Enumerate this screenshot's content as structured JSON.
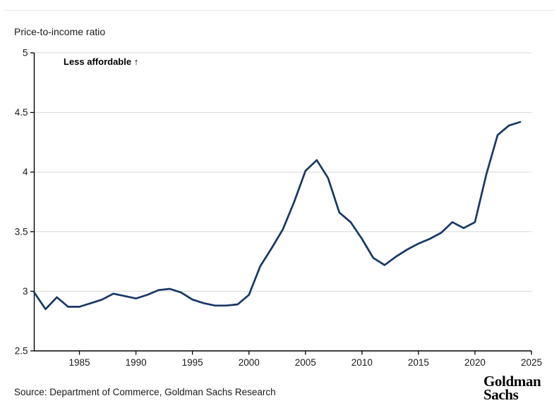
{
  "page": {
    "title": "Price-to-income ratio"
  },
  "annotation": {
    "label": "Less affordable ↑"
  },
  "footer": {
    "source": "Source: Department of Commerce, Goldman Sachs Research",
    "logo_line1": "Goldman",
    "logo_line2": "Sachs"
  },
  "colors": {
    "line": "#183866",
    "grid": "#d8d8d8",
    "axis": "#000000",
    "tick_text": "#1a1a1a",
    "top_rule": "#e3e3e3"
  },
  "chart_data": {
    "type": "line",
    "title": "Price-to-income ratio",
    "xlabel": "",
    "ylabel": "Price-to-income ratio",
    "annotation": "Less affordable ↑",
    "legend": "none",
    "grid": "horizontal",
    "xlim": [
      1981,
      2025
    ],
    "ylim": [
      2.5,
      5
    ],
    "x_ticks": [
      {
        "value": 1985,
        "label": "1985"
      },
      {
        "value": 1990,
        "label": "1990"
      },
      {
        "value": 1995,
        "label": "1995"
      },
      {
        "value": 2000,
        "label": "2000"
      },
      {
        "value": 2005,
        "label": "2005"
      },
      {
        "value": 2010,
        "label": "2010"
      },
      {
        "value": 2015,
        "label": "2015"
      },
      {
        "value": 2020,
        "label": "2020"
      },
      {
        "value": 2025,
        "label": "2025"
      }
    ],
    "y_ticks": [
      {
        "value": 2.5,
        "label": "2.5"
      },
      {
        "value": 3,
        "label": "3"
      },
      {
        "value": 3.5,
        "label": "3.5"
      },
      {
        "value": 4,
        "label": "4"
      },
      {
        "value": 4.5,
        "label": "4.5"
      },
      {
        "value": 5,
        "label": "5"
      }
    ],
    "x": [
      1981,
      1982,
      1983,
      1984,
      1985,
      1986,
      1987,
      1988,
      1989,
      1990,
      1991,
      1992,
      1993,
      1994,
      1995,
      1996,
      1997,
      1998,
      1999,
      2000,
      2001,
      2002,
      2003,
      2004,
      2005,
      2006,
      2007,
      2008,
      2009,
      2010,
      2011,
      2012,
      2013,
      2014,
      2015,
      2016,
      2017,
      2018,
      2019,
      2020,
      2021,
      2022,
      2023,
      2024
    ],
    "values": [
      2.99,
      2.85,
      2.95,
      2.87,
      2.87,
      2.9,
      2.93,
      2.98,
      2.96,
      2.94,
      2.97,
      3.01,
      3.02,
      2.99,
      2.93,
      2.9,
      2.88,
      2.88,
      2.89,
      2.97,
      3.21,
      3.36,
      3.52,
      3.75,
      4.01,
      4.1,
      3.95,
      3.66,
      3.58,
      3.44,
      3.28,
      3.22,
      3.29,
      3.35,
      3.4,
      3.44,
      3.49,
      3.58,
      3.53,
      3.58,
      3.98,
      4.31,
      4.39,
      4.42
    ]
  }
}
